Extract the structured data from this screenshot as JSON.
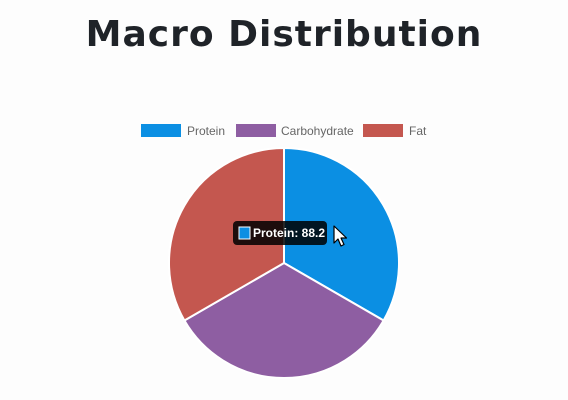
{
  "title": "Macro Distribution",
  "chart_data": {
    "type": "pie",
    "categories": [
      "Protein",
      "Carbohydrate",
      "Fat"
    ],
    "values": [
      88.2,
      88.2,
      88.2
    ],
    "colors": [
      "#0b8fe3",
      "#8e5ea2",
      "#c4574f"
    ],
    "legend_position": "top",
    "tooltip": {
      "label": "Protein: 88.2",
      "category": "Protein"
    }
  }
}
